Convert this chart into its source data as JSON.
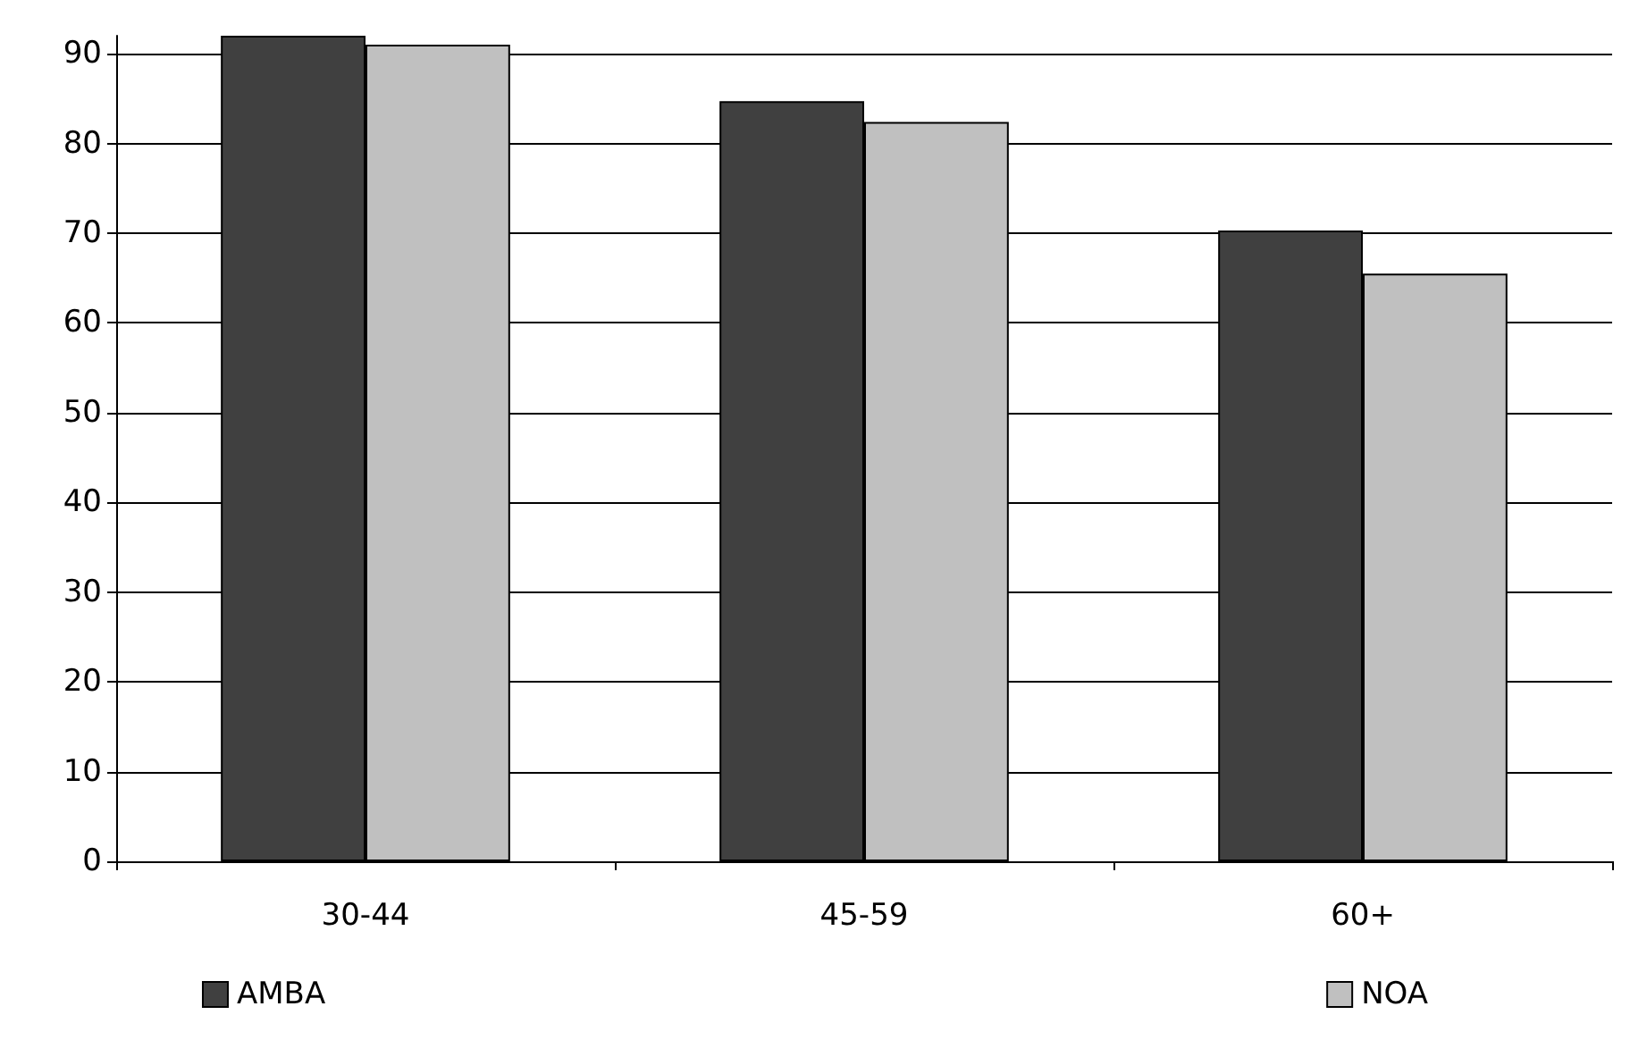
{
  "chart_data": {
    "type": "bar",
    "categories": [
      "30-44",
      "45-59",
      "60+"
    ],
    "series": [
      {
        "name": "AMBA",
        "color": "#404040",
        "values": [
          92,
          84.7,
          70.3
        ]
      },
      {
        "name": "NOA",
        "color": "#c0c0c0",
        "values": [
          91,
          82.4,
          65.5
        ]
      }
    ],
    "ylim": [
      0,
      92
    ],
    "yticks": [
      0,
      10,
      20,
      30,
      40,
      50,
      60,
      70,
      80,
      90
    ],
    "grid": "y",
    "legend": "bottom"
  }
}
